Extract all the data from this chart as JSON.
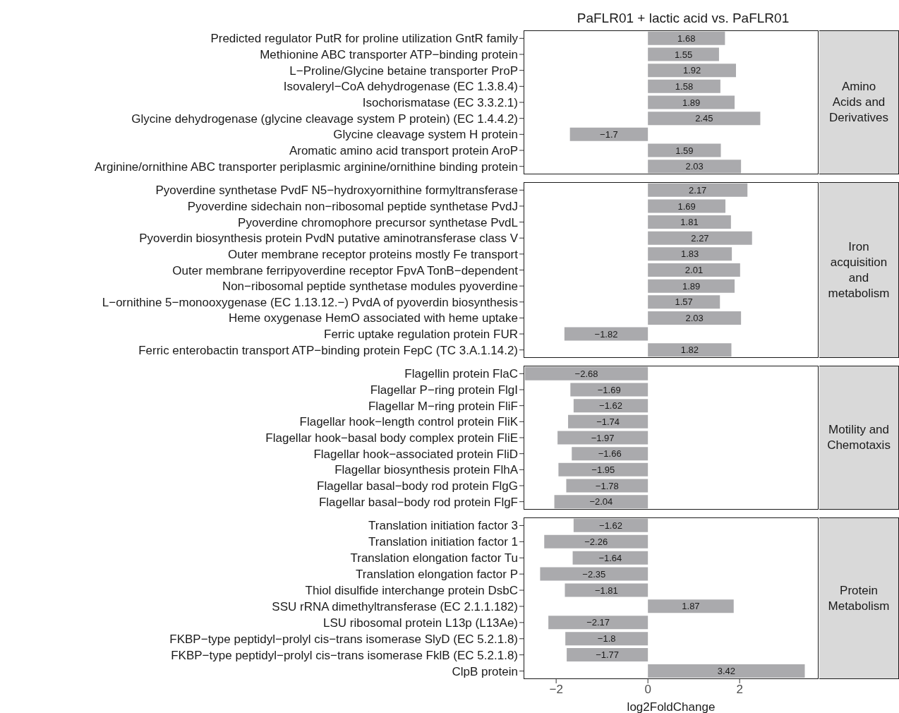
{
  "chart_data": [
    {
      "type": "bar",
      "orientation": "horizontal",
      "title": "PaFLR01 + lactic acid vs. PaFLR01",
      "annotations": [
        "Amino Acids and Derivatives"
      ],
      "categories": [
        "Predicted regulator PutR for proline utilization GntR family",
        "Methionine ABC transporter ATP−binding protein",
        "L−Proline/Glycine betaine transporter ProP",
        "Isovaleryl−CoA dehydrogenase (EC 1.3.8.4)",
        "Isochorismatase (EC 3.3.2.1)",
        "Glycine dehydrogenase (glycine cleavage system P protein) (EC 1.4.4.2)",
        "Glycine cleavage system H protein",
        "Aromatic amino acid transport protein AroP",
        "Arginine/ornithine ABC transporter periplasmic arginine/ornithine binding protein"
      ],
      "values": [
        1.68,
        1.55,
        1.92,
        1.58,
        1.89,
        2.45,
        -1.7,
        1.59,
        2.03
      ],
      "color": "#aaaaad",
      "data_labels": true,
      "xlim": [
        -2.71,
        3.72
      ],
      "tick_labels": "y",
      "grid": false,
      "legend": false
    },
    {
      "type": "bar",
      "orientation": "horizontal",
      "annotations": [
        "Iron acquisition and metabolism"
      ],
      "categories": [
        "Pyoverdine synthetase PvdF N5−hydroxyornithine formyltransferase",
        "Pyoverdine sidechain non−ribosomal peptide synthetase PvdJ",
        "Pyoverdine chromophore precursor synthetase PvdL",
        "Pyoverdin biosynthesis protein PvdN putative aminotransferase class V",
        "Outer membrane receptor proteins mostly Fe transport",
        "Outer membrane ferripyoverdine receptor FpvA TonB−dependent",
        "Non−ribosomal peptide synthetase modules pyoverdine",
        "L−ornithine 5−monooxygenase (EC 1.13.12.−) PvdA of pyoverdin biosynthesis",
        "Heme oxygenase HemO associated with heme uptake",
        "Ferric uptake regulation protein FUR",
        "Ferric enterobactin transport ATP−binding protein FepC (TC 3.A.1.14.2)"
      ],
      "values": [
        2.17,
        1.69,
        1.81,
        2.27,
        1.83,
        2.01,
        1.89,
        1.57,
        2.03,
        -1.82,
        1.82
      ],
      "color": "#aaaaad",
      "data_labels": true,
      "xlim": [
        -2.71,
        3.72
      ],
      "tick_labels": "y",
      "grid": false,
      "legend": false
    },
    {
      "type": "bar",
      "orientation": "horizontal",
      "annotations": [
        "Motility and Chemotaxis"
      ],
      "categories": [
        "Flagellin protein FlaC",
        "Flagellar P−ring protein FlgI",
        "Flagellar M−ring protein FliF",
        "Flagellar hook−length control protein FliK",
        "Flagellar hook−basal body complex protein FliE",
        "Flagellar hook−associated protein FliD",
        "Flagellar biosynthesis protein FlhA",
        "Flagellar basal−body rod protein FlgG",
        "Flagellar basal−body rod protein FlgF"
      ],
      "values": [
        -2.68,
        -1.69,
        -1.62,
        -1.74,
        -1.97,
        -1.66,
        -1.95,
        -1.78,
        -2.04
      ],
      "color": "#aaaaad",
      "data_labels": true,
      "xlim": [
        -2.71,
        3.72
      ],
      "tick_labels": "y",
      "grid": false,
      "legend": false
    },
    {
      "type": "bar",
      "orientation": "horizontal",
      "xlabel": "log2FoldChange",
      "annotations": [
        "Protein Metabolism"
      ],
      "categories": [
        "Translation initiation factor 3",
        "Translation initiation factor 1",
        "Translation elongation factor Tu",
        "Translation elongation factor P",
        "Thiol disulfide interchange protein DsbC",
        "SSU rRNA dimethyltransferase (EC 2.1.1.182)",
        "LSU ribosomal protein L13p (L13Ae)",
        "FKBP−type peptidyl−prolyl cis−trans isomerase SlyD (EC 5.2.1.8)",
        "FKBP−type peptidyl−prolyl cis−trans isomerase FklB (EC 5.2.1.8)",
        "ClpB protein"
      ],
      "values": [
        -1.62,
        -2.26,
        -1.64,
        -2.35,
        -1.81,
        1.87,
        -2.17,
        -1.8,
        -1.77,
        3.42
      ],
      "color": "#aaaaad",
      "data_labels": true,
      "xlim": [
        -2.71,
        3.72
      ],
      "xticks": [
        {
          "value": -2,
          "label": "−2"
        },
        0,
        2
      ],
      "grid": false,
      "legend": false
    }
  ]
}
